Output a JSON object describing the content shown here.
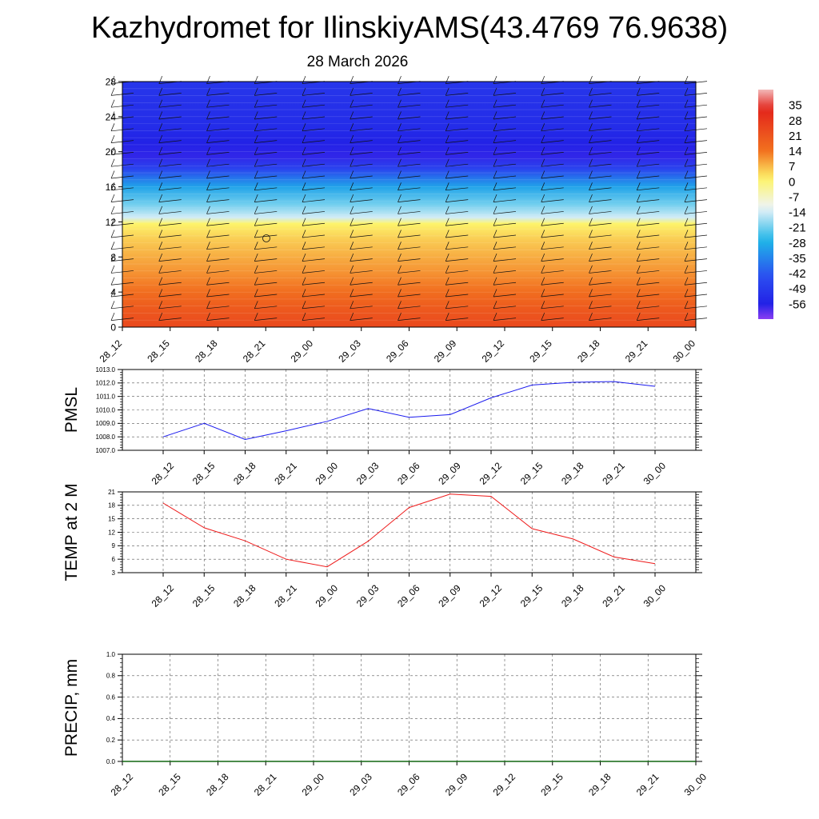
{
  "title": "Kazhydromet for IlinskiyAMS(43.4769 76.9638)",
  "subtitle": "28 March 2026",
  "chart_data": [
    {
      "type": "heatmap",
      "name": "vertical-temperature-wind-cross-section",
      "title": "",
      "ylabel": "",
      "ylim": [
        0,
        28
      ],
      "yticks": [
        0,
        4,
        8,
        12,
        16,
        20,
        24,
        28
      ],
      "x": [
        "28_12",
        "28_15",
        "28_18",
        "28_21",
        "29_00",
        "29_03",
        "29_06",
        "29_09",
        "29_12",
        "29_15",
        "29_18",
        "29_21",
        "30_00"
      ],
      "temperature_profile": {
        "levels": [
          0,
          2,
          4,
          6,
          8,
          10,
          11.8,
          12.5,
          14,
          16,
          18,
          19.5,
          21,
          23,
          25,
          28
        ],
        "values": [
          24,
          20,
          15,
          11,
          8,
          5,
          1,
          -14,
          -21,
          -30,
          -46,
          -57,
          -56,
          -53,
          -52,
          -50
        ]
      },
      "colorbar": {
        "labels": [
          "35",
          "28",
          "21",
          "14",
          "7",
          "0",
          "-7",
          "-14",
          "-21",
          "-28",
          "-35",
          "-42",
          "-49",
          "-56"
        ],
        "values": [
          35,
          28,
          21,
          14,
          7,
          0,
          -7,
          -14,
          -21,
          -28,
          -35,
          -42,
          -49,
          -56
        ],
        "range": [
          -63,
          42
        ],
        "colors": {
          "top": "#f2b8b8",
          "red": "#e3241b",
          "orange": "#f2711f",
          "yellow": "#fdf46b",
          "pale": "#eef4f8",
          "sky": "#1fb6e8",
          "blue": "#2b4cf0",
          "darkblue": "#2222e6",
          "violet": "#8a3ef2"
        }
      }
    },
    {
      "type": "line",
      "name": "pmsl-chart",
      "ylabel": "PMSL",
      "x": [
        "28_12",
        "28_15",
        "28_18",
        "28_21",
        "29_00",
        "29_03",
        "29_06",
        "29_09",
        "29_12",
        "29_15",
        "29_18",
        "29_21",
        "30_00"
      ],
      "values": [
        1008.0,
        1009.0,
        1007.8,
        1008.45,
        1009.15,
        1010.1,
        1009.45,
        1009.65,
        1010.9,
        1011.85,
        1012.05,
        1012.1,
        1011.75
      ],
      "ylim": [
        1007.0,
        1013.0
      ],
      "yticks": [
        "1007.0",
        "1008.0",
        "1009.0",
        "1010.0",
        "1011.0",
        "1012.0",
        "1013.0"
      ],
      "color": "#1a1aee"
    },
    {
      "type": "line",
      "name": "temperature-2m-chart",
      "ylabel": "TEMP at 2 M",
      "x": [
        "28_12",
        "28_15",
        "28_18",
        "28_21",
        "29_00",
        "29_03",
        "29_06",
        "29_09",
        "29_12",
        "29_15",
        "29_18",
        "29_21",
        "30_00"
      ],
      "values": [
        18.5,
        13.0,
        10.1,
        6.0,
        4.3,
        10.0,
        17.5,
        20.5,
        20.0,
        12.8,
        10.5,
        6.5,
        5.0
      ],
      "ylim": [
        3,
        21
      ],
      "yticks": [
        "3",
        "6",
        "9",
        "12",
        "15",
        "18",
        "21"
      ],
      "color": "#ee1a1a"
    },
    {
      "type": "line",
      "name": "precipitation-chart",
      "ylabel": "PRECIP, mm",
      "x": [
        "28_12",
        "28_15",
        "28_18",
        "28_21",
        "29_00",
        "29_03",
        "29_06",
        "29_09",
        "29_12",
        "29_15",
        "29_18",
        "29_21",
        "30_00"
      ],
      "values": [
        0,
        0,
        0,
        0,
        0,
        0,
        0,
        0,
        0,
        0,
        0,
        0,
        0
      ],
      "ylim": [
        0.0,
        1.0
      ],
      "yticks": [
        "0.0",
        "0.2",
        "0.4",
        "0.6",
        "0.8",
        "1.0"
      ],
      "color": "#116611"
    }
  ]
}
